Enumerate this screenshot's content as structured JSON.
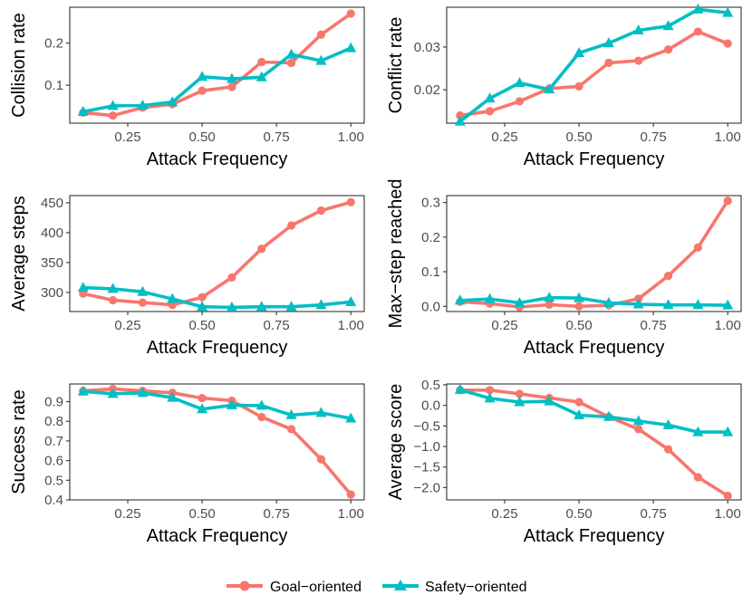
{
  "chart_data": [
    {
      "type": "line",
      "id": "collision",
      "title": "",
      "xlabel": "Attack Frequency",
      "ylabel": "Collision rate",
      "x": [
        0.1,
        0.2,
        0.3,
        0.4,
        0.5,
        0.6,
        0.7,
        0.8,
        0.9,
        1.0
      ],
      "xlim": [
        0.055,
        1.045
      ],
      "ylim": [
        0.01,
        0.285
      ],
      "xticks": [
        0.25,
        0.5,
        0.75,
        1.0
      ],
      "xtick_labels": [
        "0.25",
        "0.50",
        "0.75",
        "1.00"
      ],
      "yticks": [
        0.1,
        0.2
      ],
      "ytick_labels": [
        "0.1",
        "0.2"
      ],
      "series": [
        {
          "name": "Goal-oriented",
          "values": [
            0.035,
            0.028,
            0.047,
            0.055,
            0.087,
            0.096,
            0.155,
            0.153,
            0.22,
            0.27
          ]
        },
        {
          "name": "Safety-oriented",
          "values": [
            0.037,
            0.051,
            0.052,
            0.06,
            0.12,
            0.115,
            0.119,
            0.173,
            0.158,
            0.188
          ]
        }
      ]
    },
    {
      "type": "line",
      "id": "conflict",
      "title": "",
      "xlabel": "Attack Frequency",
      "ylabel": "Conflict rate",
      "x": [
        0.1,
        0.2,
        0.3,
        0.4,
        0.5,
        0.6,
        0.7,
        0.8,
        0.9,
        1.0
      ],
      "xlim": [
        0.055,
        1.045
      ],
      "ylim": [
        0.0122,
        0.0393
      ],
      "xticks": [
        0.25,
        0.5,
        0.75,
        1.0
      ],
      "xtick_labels": [
        "0.25",
        "0.50",
        "0.75",
        "1.00"
      ],
      "yticks": [
        0.02,
        0.03
      ],
      "ytick_labels": [
        "0.02",
        "0.03"
      ],
      "series": [
        {
          "name": "Goal-oriented",
          "values": [
            0.014,
            0.015,
            0.0173,
            0.0203,
            0.0208,
            0.0263,
            0.0268,
            0.0294,
            0.0336,
            0.0308
          ]
        },
        {
          "name": "Safety-oriented",
          "values": [
            0.0126,
            0.018,
            0.0216,
            0.0201,
            0.0286,
            0.0309,
            0.0339,
            0.0349,
            0.0388,
            0.038
          ]
        }
      ]
    },
    {
      "type": "line",
      "id": "avgsteps",
      "title": "",
      "xlabel": "Attack Frequency",
      "ylabel": "Average steps",
      "x": [
        0.1,
        0.2,
        0.3,
        0.4,
        0.5,
        0.6,
        0.7,
        0.8,
        0.9,
        1.0
      ],
      "xlim": [
        0.055,
        1.045
      ],
      "ylim": [
        268,
        462
      ],
      "xticks": [
        0.25,
        0.5,
        0.75,
        1.0
      ],
      "xtick_labels": [
        "0.25",
        "0.50",
        "0.75",
        "1.00"
      ],
      "yticks": [
        300,
        350,
        400,
        450
      ],
      "ytick_labels": [
        "300",
        "350",
        "400",
        "450"
      ],
      "series": [
        {
          "name": "Goal-oriented",
          "values": [
            298,
            287,
            283,
            279,
            292,
            325,
            373,
            412,
            437,
            451
          ]
        },
        {
          "name": "Safety-oriented",
          "values": [
            308,
            306,
            301,
            289,
            276,
            275,
            276,
            276,
            279,
            284
          ]
        }
      ]
    },
    {
      "type": "line",
      "id": "maxstep",
      "title": "",
      "xlabel": "Attack Frequency",
      "ylabel": "Max−step reached",
      "x": [
        0.1,
        0.2,
        0.3,
        0.4,
        0.5,
        0.6,
        0.7,
        0.8,
        0.9,
        1.0
      ],
      "xlim": [
        0.055,
        1.045
      ],
      "ylim": [
        -0.015,
        0.32
      ],
      "xticks": [
        0.25,
        0.5,
        0.75,
        1.0
      ],
      "xtick_labels": [
        "0.25",
        "0.50",
        "0.75",
        "1.00"
      ],
      "yticks": [
        0.0,
        0.1,
        0.2,
        0.3
      ],
      "ytick_labels": [
        "0.0",
        "0.1",
        "0.2",
        "0.3"
      ],
      "series": [
        {
          "name": "Goal-oriented",
          "values": [
            0.013,
            0.008,
            -0.002,
            0.005,
            0.0,
            0.003,
            0.022,
            0.088,
            0.17,
            0.305
          ]
        },
        {
          "name": "Safety-oriented",
          "values": [
            0.017,
            0.021,
            0.01,
            0.025,
            0.024,
            0.01,
            0.006,
            0.004,
            0.004,
            0.003
          ]
        }
      ]
    },
    {
      "type": "line",
      "id": "success",
      "title": "",
      "xlabel": "Attack Frequency",
      "ylabel": "Success rate",
      "x": [
        0.1,
        0.2,
        0.3,
        0.4,
        0.5,
        0.6,
        0.7,
        0.8,
        0.9,
        1.0
      ],
      "xlim": [
        0.055,
        1.045
      ],
      "ylim": [
        0.4,
        0.99
      ],
      "xticks": [
        0.25,
        0.5,
        0.75,
        1.0
      ],
      "xtick_labels": [
        "0.25",
        "0.50",
        "0.75",
        "1.00"
      ],
      "yticks": [
        0.4,
        0.5,
        0.6,
        0.7,
        0.8,
        0.9
      ],
      "ytick_labels": [
        "0.4",
        "0.5",
        "0.6",
        "0.7",
        "0.8",
        "0.9"
      ],
      "series": [
        {
          "name": "Goal-oriented",
          "values": [
            0.955,
            0.965,
            0.955,
            0.945,
            0.918,
            0.905,
            0.822,
            0.76,
            0.607,
            0.427
          ]
        },
        {
          "name": "Safety-oriented",
          "values": [
            0.952,
            0.94,
            0.945,
            0.92,
            0.862,
            0.882,
            0.88,
            0.832,
            0.843,
            0.815
          ]
        }
      ]
    },
    {
      "type": "line",
      "id": "avgscore",
      "title": "",
      "xlabel": "Attack Frequency",
      "ylabel": "Average score",
      "x": [
        0.1,
        0.2,
        0.3,
        0.4,
        0.5,
        0.6,
        0.7,
        0.8,
        0.9,
        1.0
      ],
      "xlim": [
        0.055,
        1.045
      ],
      "ylim": [
        -2.3,
        0.52
      ],
      "xticks": [
        0.25,
        0.5,
        0.75,
        1.0
      ],
      "xtick_labels": [
        "0.25",
        "0.50",
        "0.75",
        "1.00"
      ],
      "yticks": [
        0.5,
        0.0,
        -0.5,
        -1.0,
        -1.5,
        -2.0
      ],
      "ytick_labels": [
        "0.5",
        "0.0",
        "−0.5",
        "−1.0",
        "−1.5",
        "−2.0"
      ],
      "series": [
        {
          "name": "Goal-oriented",
          "values": [
            0.37,
            0.37,
            0.28,
            0.18,
            0.08,
            -0.28,
            -0.58,
            -1.07,
            -1.75,
            -2.2
          ]
        },
        {
          "name": "Safety-oriented",
          "values": [
            0.38,
            0.17,
            0.08,
            0.1,
            -0.24,
            -0.28,
            -0.38,
            -0.48,
            -0.65,
            -0.65
          ]
        }
      ]
    }
  ],
  "legend": {
    "position": "bottom",
    "items": [
      {
        "label": "Goal−oriented",
        "color": "#F8766D",
        "marker": "circle"
      },
      {
        "label": "Safety−oriented",
        "color": "#00BFC4",
        "marker": "triangle"
      }
    ]
  },
  "colors": {
    "goal": "#F8766D",
    "safety": "#00BFC4",
    "axis": "#333333",
    "tick_text": "#4d4d4d"
  }
}
